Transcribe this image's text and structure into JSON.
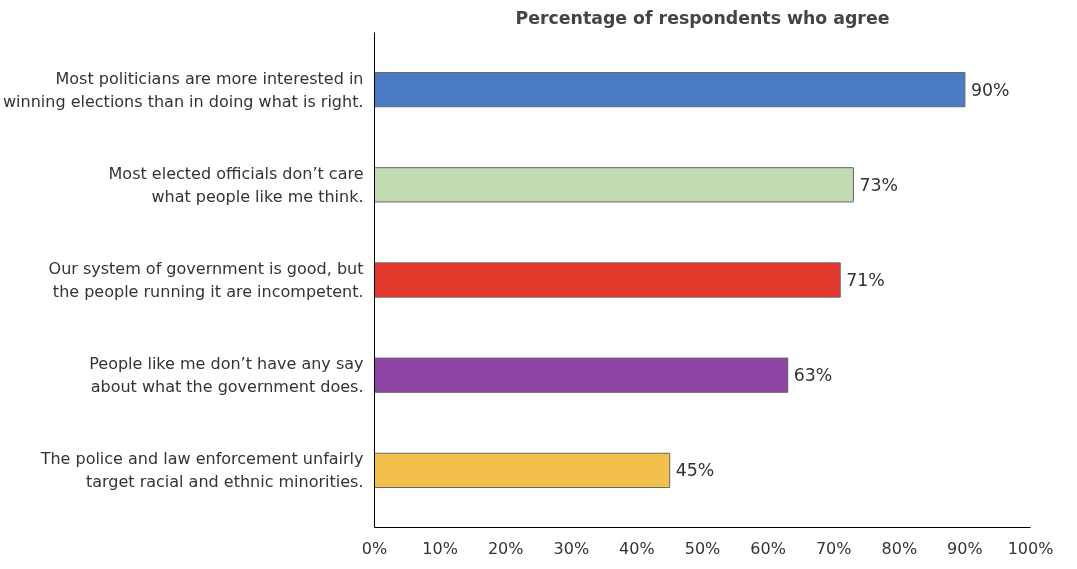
{
  "chart_data": {
    "type": "bar",
    "orientation": "horizontal",
    "title": "Percentage of respondents who agree",
    "categories": [
      "Most politicians are more interested in\nwinning elections than in doing what is right.",
      "Most elected officials don’t care\nwhat people like me think.",
      "Our system of government is good, but\nthe people running it are incompetent.",
      "People like me don’t have any say\nabout what the government does.",
      "The police and law enforcement unfairly\ntarget racial and ethnic minorities."
    ],
    "values": [
      90,
      73,
      71,
      63,
      45
    ],
    "colors": [
      "#4a7cc6",
      "#c2dbb2",
      "#e2382c",
      "#8e44a4",
      "#f3c04e"
    ],
    "value_labels": [
      "90%",
      "73%",
      "71%",
      "63%",
      "45%"
    ],
    "xlim": [
      0,
      100
    ],
    "xticks": [
      {
        "value": 0,
        "label": "0%"
      },
      {
        "value": 10,
        "label": "10%"
      },
      {
        "value": 20,
        "label": "20%"
      },
      {
        "value": 30,
        "label": "30%"
      },
      {
        "value": 40,
        "label": "40%"
      },
      {
        "value": 50,
        "label": "50%"
      },
      {
        "value": 60,
        "label": "60%"
      },
      {
        "value": 70,
        "label": "70%"
      },
      {
        "value": 80,
        "label": "80%"
      },
      {
        "value": 90,
        "label": "90%"
      },
      {
        "value": 100,
        "label": "100%"
      }
    ],
    "grid": false
  }
}
